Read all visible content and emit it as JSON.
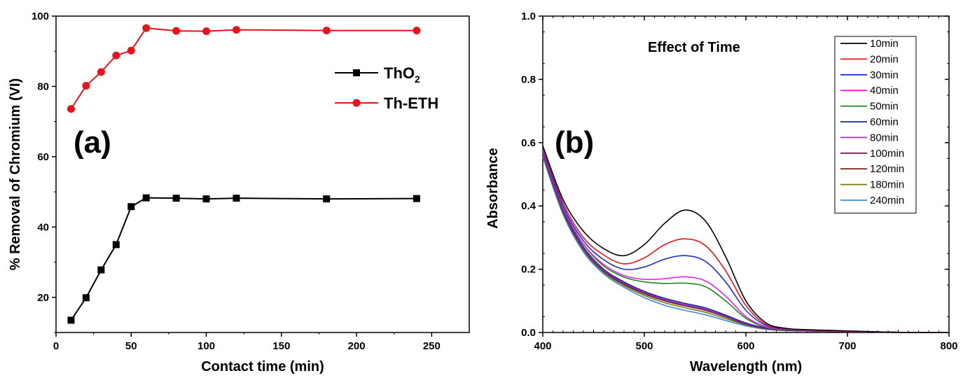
{
  "chart_data": [
    {
      "type": "line",
      "panel_label": "(a)",
      "xlabel": "Contact time (min)",
      "ylabel": "% Removal of Chromium (VI)",
      "xlim": [
        0,
        275
      ],
      "ylim": [
        10,
        100
      ],
      "xticks": [
        0,
        50,
        100,
        150,
        200,
        250
      ],
      "yticks": [
        20,
        40,
        60,
        80,
        100
      ],
      "legend_position": "right",
      "series": [
        {
          "name": "ThO2",
          "name_base": "ThO",
          "name_sub": "2",
          "color": "#000000",
          "marker": "square",
          "x": [
            10,
            20,
            30,
            40,
            50,
            60,
            80,
            100,
            120,
            180,
            240
          ],
          "y": [
            13.5,
            19.9,
            27.8,
            35.0,
            45.8,
            48.3,
            48.2,
            48.0,
            48.2,
            48.0,
            48.1
          ]
        },
        {
          "name": "Th-ETH",
          "color": "#e8141b",
          "marker": "circle",
          "x": [
            10,
            20,
            30,
            40,
            50,
            60,
            80,
            100,
            120,
            180,
            240
          ],
          "y": [
            73.6,
            80.2,
            84.1,
            88.8,
            90.2,
            96.6,
            95.8,
            95.7,
            96.1,
            95.9,
            95.9
          ]
        }
      ]
    },
    {
      "type": "line",
      "panel_label": "(b)",
      "annotation": "Effect of Time",
      "xlabel": "Wavelength (nm)",
      "ylabel": "Absorbance",
      "xlim": [
        400,
        800
      ],
      "ylim": [
        0,
        1.0
      ],
      "xticks": [
        400,
        500,
        600,
        700,
        800
      ],
      "yticks": [
        0.0,
        0.2,
        0.4,
        0.6,
        0.8,
        1.0
      ],
      "ytick_labels": [
        "0.0",
        "0.2",
        "0.4",
        "0.6",
        "0.8",
        "1.0"
      ],
      "legend_position": "top-right",
      "x": [
        400,
        420,
        440,
        460,
        480,
        500,
        520,
        540,
        560,
        580,
        600,
        620,
        640,
        660,
        680,
        700,
        720,
        740,
        760,
        780,
        800
      ],
      "series": [
        {
          "name": "10min",
          "color": "#000000",
          "y": [
            0.59,
            0.42,
            0.32,
            0.265,
            0.243,
            0.278,
            0.345,
            0.387,
            0.353,
            0.24,
            0.1,
            0.03,
            0.013,
            0.009,
            0.007,
            0.005,
            0.003,
            0.001,
            0.0,
            0.0,
            0.0
          ]
        },
        {
          "name": "20min",
          "color": "#e8141b",
          "y": [
            0.585,
            0.41,
            0.3,
            0.245,
            0.217,
            0.236,
            0.278,
            0.296,
            0.275,
            0.195,
            0.085,
            0.025,
            0.012,
            0.008,
            0.006,
            0.004,
            0.003,
            0.001,
            0.0,
            0.0,
            0.0
          ]
        },
        {
          "name": "30min",
          "color": "#1e2fd0",
          "y": [
            0.58,
            0.4,
            0.29,
            0.23,
            0.2,
            0.207,
            0.232,
            0.243,
            0.225,
            0.16,
            0.07,
            0.022,
            0.011,
            0.008,
            0.006,
            0.004,
            0.002,
            0.001,
            0.0,
            0.0,
            0.0
          ]
        },
        {
          "name": "40min",
          "color": "#f21df2",
          "y": [
            0.575,
            0.395,
            0.28,
            0.215,
            0.18,
            0.168,
            0.17,
            0.176,
            0.163,
            0.115,
            0.05,
            0.018,
            0.01,
            0.007,
            0.005,
            0.003,
            0.002,
            0.001,
            0.0,
            0.0,
            0.0
          ]
        },
        {
          "name": "50min",
          "color": "#1c8a1c",
          "y": [
            0.575,
            0.392,
            0.278,
            0.21,
            0.175,
            0.16,
            0.155,
            0.156,
            0.145,
            0.1,
            0.045,
            0.016,
            0.009,
            0.007,
            0.005,
            0.003,
            0.002,
            0.001,
            0.0,
            0.0,
            0.0
          ]
        },
        {
          "name": "60min",
          "color": "#1a2b8a",
          "y": [
            0.57,
            0.388,
            0.27,
            0.2,
            0.16,
            0.13,
            0.108,
            0.092,
            0.078,
            0.055,
            0.03,
            0.014,
            0.008,
            0.006,
            0.004,
            0.003,
            0.002,
            0.001,
            0.0,
            0.0,
            0.0
          ]
        },
        {
          "name": "80min",
          "color": "#9b30e0",
          "y": [
            0.568,
            0.385,
            0.267,
            0.197,
            0.157,
            0.127,
            0.104,
            0.088,
            0.074,
            0.052,
            0.028,
            0.013,
            0.008,
            0.006,
            0.004,
            0.003,
            0.002,
            0.001,
            0.0,
            0.0,
            0.0
          ]
        },
        {
          "name": "100min",
          "color": "#7a1f5c",
          "y": [
            0.566,
            0.383,
            0.265,
            0.195,
            0.155,
            0.125,
            0.102,
            0.085,
            0.072,
            0.05,
            0.027,
            0.012,
            0.007,
            0.005,
            0.004,
            0.003,
            0.002,
            0.001,
            0.0,
            0.0,
            0.0
          ]
        },
        {
          "name": "120min",
          "color": "#7a2a1a",
          "y": [
            0.564,
            0.381,
            0.263,
            0.193,
            0.152,
            0.122,
            0.1,
            0.084,
            0.07,
            0.049,
            0.026,
            0.012,
            0.007,
            0.005,
            0.004,
            0.003,
            0.002,
            0.001,
            0.0,
            0.0,
            0.0
          ]
        },
        {
          "name": "180min",
          "color": "#7d7a10",
          "y": [
            0.56,
            0.378,
            0.26,
            0.19,
            0.148,
            0.117,
            0.094,
            0.078,
            0.064,
            0.044,
            0.024,
            0.011,
            0.007,
            0.005,
            0.004,
            0.003,
            0.002,
            0.001,
            0.0,
            0.0,
            0.0
          ]
        },
        {
          "name": "240min",
          "color": "#3a8ad8",
          "y": [
            0.555,
            0.373,
            0.255,
            0.185,
            0.143,
            0.11,
            0.086,
            0.07,
            0.056,
            0.038,
            0.021,
            0.01,
            0.006,
            0.005,
            0.004,
            0.003,
            0.002,
            0.001,
            0.0,
            0.0,
            0.0
          ]
        }
      ]
    }
  ]
}
